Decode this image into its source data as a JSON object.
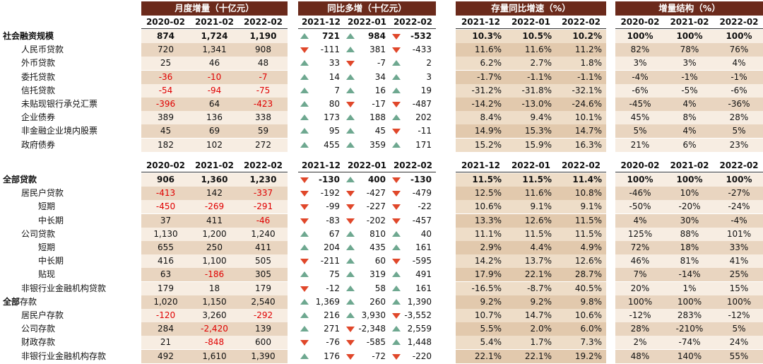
{
  "sections": {
    "monthly": "月度增量（十亿元）",
    "yoy_incr": "同比多增（十亿元）",
    "stock_growth": "存量同比增速（%）",
    "structure": "增量结构（%）"
  },
  "colors": {
    "header_bg": "#6b2a1b",
    "row_light": "#f7ede2",
    "row_dark": "#e9d5c0",
    "growth_light": "#eeddc8",
    "growth_dark": "#e2c9ad",
    "negative_text": "#e00000",
    "up_arrow": "#6ea890",
    "down_arrow": "#e0472a"
  },
  "chart_data": [
    {
      "type": "table",
      "columns": {
        "monthly": [
          "2020-02",
          "2021-02",
          "2022-02"
        ],
        "yoy_incr": [
          "2021-12",
          "2022-01",
          "2022-02"
        ],
        "stock_growth": [
          "2021-12",
          "2022-01",
          "2022-02"
        ],
        "structure": [
          "2020-02",
          "2021-02",
          "2022-02"
        ]
      },
      "rows": [
        {
          "label": "社会融资规模",
          "indent": 0,
          "bold": true,
          "monthly": [
            "874",
            "1,724",
            "1,190"
          ],
          "yoy_incr": [
            "721",
            "984",
            "-532"
          ],
          "stock_growth": [
            "10.3%",
            "10.5%",
            "10.2%"
          ],
          "structure": [
            "100%",
            "100%",
            "100%"
          ]
        },
        {
          "label": "人民币贷款",
          "indent": 1,
          "monthly": [
            "720",
            "1,341",
            "908"
          ],
          "yoy_incr": [
            "-111",
            "381",
            "-433"
          ],
          "stock_growth": [
            "11.6%",
            "11.6%",
            "11.2%"
          ],
          "structure": [
            "82%",
            "78%",
            "76%"
          ]
        },
        {
          "label": "外币贷款",
          "indent": 1,
          "monthly": [
            "25",
            "46",
            "48"
          ],
          "yoy_incr": [
            "33",
            "-7",
            "2"
          ],
          "stock_growth": [
            "6.2%",
            "2.7%",
            "1.8%"
          ],
          "structure": [
            "3%",
            "3%",
            "4%"
          ]
        },
        {
          "label": "委托贷款",
          "indent": 1,
          "monthly": [
            "-36",
            "-10",
            "-7"
          ],
          "yoy_incr": [
            "14",
            "34",
            "3"
          ],
          "stock_growth": [
            "-1.7%",
            "-1.1%",
            "-1.1%"
          ],
          "structure": [
            "-4%",
            "-1%",
            "-1%"
          ]
        },
        {
          "label": "信托贷款",
          "indent": 1,
          "monthly": [
            "-54",
            "-94",
            "-75"
          ],
          "yoy_incr": [
            "7",
            "16",
            "19"
          ],
          "stock_growth": [
            "-31.2%",
            "-31.8%",
            "-32.1%"
          ],
          "structure": [
            "-6%",
            "-5%",
            "-6%"
          ]
        },
        {
          "label": "未贴现银行承兑汇票",
          "indent": 1,
          "monthly": [
            "-396",
            "64",
            "-423"
          ],
          "yoy_incr": [
            "80",
            "-17",
            "-487"
          ],
          "stock_growth": [
            "-14.2%",
            "-13.0%",
            "-24.6%"
          ],
          "structure": [
            "-45%",
            "4%",
            "-36%"
          ]
        },
        {
          "label": "企业债券",
          "indent": 1,
          "monthly": [
            "389",
            "136",
            "338"
          ],
          "yoy_incr": [
            "173",
            "188",
            "202"
          ],
          "stock_growth": [
            "8.4%",
            "9.4%",
            "10.1%"
          ],
          "structure": [
            "45%",
            "8%",
            "28%"
          ]
        },
        {
          "label": "非金融企业境内股票",
          "indent": 1,
          "monthly": [
            "45",
            "69",
            "59"
          ],
          "yoy_incr": [
            "95",
            "45",
            "-11"
          ],
          "stock_growth": [
            "14.9%",
            "15.3%",
            "14.7%"
          ],
          "structure": [
            "5%",
            "4%",
            "5%"
          ]
        },
        {
          "label": "政府债券",
          "indent": 1,
          "monthly": [
            "182",
            "102",
            "272"
          ],
          "yoy_incr": [
            "455",
            "359",
            "171"
          ],
          "stock_growth": [
            "15.2%",
            "15.9%",
            "16.3%"
          ],
          "structure": [
            "21%",
            "6%",
            "23%"
          ]
        }
      ]
    },
    {
      "type": "table",
      "columns": {
        "monthly": [
          "2020-02",
          "2021-02",
          "2022-02"
        ],
        "yoy_incr": [
          "2021-12",
          "2022-01",
          "2022-02"
        ],
        "stock_growth": [
          "2021-12",
          "2022-01",
          "2022-02"
        ],
        "structure": [
          "2020-02",
          "2021-02",
          "2022-02"
        ]
      },
      "rows": [
        {
          "label": "全部贷款",
          "indent": 0,
          "bold": true,
          "monthly": [
            "906",
            "1,360",
            "1,230"
          ],
          "yoy_incr": [
            "-130",
            "400",
            "-130"
          ],
          "stock_growth": [
            "11.5%",
            "11.5%",
            "11.4%"
          ],
          "structure": [
            "100%",
            "100%",
            "100%"
          ]
        },
        {
          "label": "居民户贷款",
          "indent": 1,
          "monthly": [
            "-413",
            "142",
            "-337"
          ],
          "yoy_incr": [
            "-192",
            "-427",
            "-479"
          ],
          "stock_growth": [
            "12.5%",
            "11.6%",
            "10.8%"
          ],
          "structure": [
            "-46%",
            "10%",
            "-27%"
          ]
        },
        {
          "label": "短期",
          "indent": 2,
          "monthly": [
            "-450",
            "-269",
            "-291"
          ],
          "yoy_incr": [
            "-99",
            "-227",
            "-22"
          ],
          "stock_growth": [
            "10.6%",
            "9.1%",
            "9.1%"
          ],
          "structure": [
            "-50%",
            "-20%",
            "-24%"
          ]
        },
        {
          "label": "中长期",
          "indent": 2,
          "monthly": [
            "37",
            "411",
            "-46"
          ],
          "yoy_incr": [
            "-83",
            "-202",
            "-457"
          ],
          "stock_growth": [
            "13.3%",
            "12.6%",
            "11.5%"
          ],
          "structure": [
            "4%",
            "30%",
            "-4%"
          ]
        },
        {
          "label": "公司贷款",
          "indent": 1,
          "monthly": [
            "1,130",
            "1,200",
            "1,240"
          ],
          "yoy_incr": [
            "67",
            "810",
            "40"
          ],
          "stock_growth": [
            "11.1%",
            "11.5%",
            "11.5%"
          ],
          "structure": [
            "125%",
            "88%",
            "101%"
          ]
        },
        {
          "label": "短期",
          "indent": 2,
          "monthly": [
            "655",
            "250",
            "411"
          ],
          "yoy_incr": [
            "204",
            "435",
            "161"
          ],
          "stock_growth": [
            "2.9%",
            "4.4%",
            "4.9%"
          ],
          "structure": [
            "72%",
            "18%",
            "33%"
          ]
        },
        {
          "label": "中长期",
          "indent": 2,
          "monthly": [
            "416",
            "1,100",
            "505"
          ],
          "yoy_incr": [
            "-211",
            "60",
            "-595"
          ],
          "stock_growth": [
            "14.2%",
            "13.7%",
            "12.6%"
          ],
          "structure": [
            "46%",
            "81%",
            "41%"
          ]
        },
        {
          "label": "贴现",
          "indent": 2,
          "monthly": [
            "63",
            "-186",
            "305"
          ],
          "yoy_incr": [
            "75",
            "319",
            "491"
          ],
          "stock_growth": [
            "17.9%",
            "22.1%",
            "28.7%"
          ],
          "structure": [
            "7%",
            "-14%",
            "25%"
          ]
        },
        {
          "label": "非银行业金融机构贷款",
          "indent": 1,
          "monthly": [
            "179",
            "18",
            "179"
          ],
          "yoy_incr": [
            "-12",
            "58",
            "161"
          ],
          "stock_growth": [
            "-16.5%",
            "-8.7%",
            "40.5%"
          ],
          "structure": [
            "20%",
            "1%",
            "15%"
          ]
        },
        {
          "label_bold": "全部",
          "label": "存款",
          "indent": 0,
          "monthly": [
            "1,020",
            "1,150",
            "2,540"
          ],
          "yoy_incr": [
            "1,369",
            "260",
            "1,390"
          ],
          "stock_growth": [
            "9.2%",
            "9.2%",
            "9.8%"
          ],
          "structure": [
            "100%",
            "100%",
            "100%"
          ]
        },
        {
          "label": "居民户存款",
          "indent": 1,
          "monthly": [
            "-120",
            "3,260",
            "-292"
          ],
          "yoy_incr": [
            "216",
            "3,930",
            "-3,552"
          ],
          "stock_growth": [
            "10.7%",
            "14.7%",
            "10.6%"
          ],
          "structure": [
            "-12%",
            "283%",
            "-12%"
          ]
        },
        {
          "label": "公司存款",
          "indent": 1,
          "monthly": [
            "284",
            "-2,420",
            "139"
          ],
          "yoy_incr": [
            "271",
            "-2,348",
            "2,559"
          ],
          "stock_growth": [
            "5.5%",
            "2.0%",
            "6.0%"
          ],
          "structure": [
            "28%",
            "-210%",
            "5%"
          ]
        },
        {
          "label": "财政存款",
          "indent": 1,
          "monthly": [
            "21",
            "-848",
            "600"
          ],
          "yoy_incr": [
            "-76",
            "-585",
            "1,448"
          ],
          "stock_growth": [
            "5.4%",
            "1.7%",
            "7.3%"
          ],
          "structure": [
            "2%",
            "-74%",
            "24%"
          ]
        },
        {
          "label": "非银行业金融机构存款",
          "indent": 1,
          "monthly": [
            "492",
            "1,610",
            "1,390"
          ],
          "yoy_incr": [
            "176",
            "-72",
            "-220"
          ],
          "stock_growth": [
            "22.1%",
            "22.1%",
            "19.2%"
          ],
          "structure": [
            "48%",
            "140%",
            "55%"
          ]
        }
      ]
    }
  ]
}
